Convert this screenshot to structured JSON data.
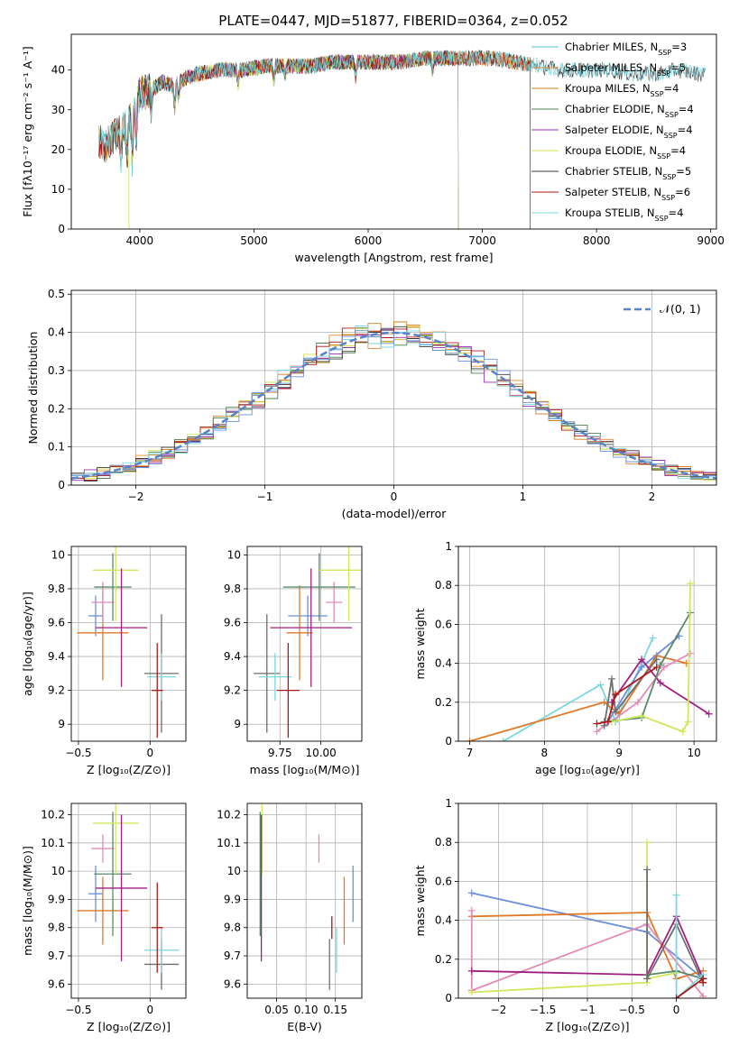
{
  "title": "PLATE=0447, MJD=51877, FIBERID=0364, z=0.052",
  "palette": [
    "#4ec0c8",
    "#e8853a",
    "#c8831a",
    "#4e7f55",
    "#9a2fb8",
    "#d4e04a",
    "#3a3a3a",
    "#b01818",
    "#7ad8e0",
    "#6b8fd8",
    "#e07a28",
    "#e48ab8",
    "#cfe85a",
    "#5a8a6a",
    "#6e6e6e",
    "#a02080"
  ],
  "chart_data": [
    {
      "type": "line",
      "id": "spectrum",
      "xlabel": "wavelength [Angstrom, rest frame]",
      "ylabel": "Flux [fλ10⁻¹⁷ erg cm⁻² s⁻¹ A⁻¹]",
      "xlim": [
        3400,
        9050
      ],
      "ylim": [
        0,
        49
      ],
      "xticks": [
        4000,
        5000,
        6000,
        7000,
        8000,
        9000
      ],
      "yticks": [
        0,
        10,
        20,
        30,
        40
      ],
      "grid": false,
      "legend_position": "upper-right",
      "continuum": {
        "x": [
          3640,
          3700,
          3800,
          3900,
          3960,
          4000,
          4100,
          4200,
          4300,
          4400,
          4500,
          4700,
          4900,
          5100,
          5300,
          5500,
          5700,
          5900,
          6100,
          6300,
          6500,
          6700,
          6900,
          7100,
          7300,
          7500,
          7700,
          7900,
          8100,
          8300,
          8500,
          8700,
          8900
        ],
        "y": [
          22,
          21,
          24,
          26,
          31,
          34,
          35,
          37,
          36,
          38,
          39,
          40,
          40,
          41,
          41,
          41,
          42,
          42,
          42,
          42,
          43,
          43,
          43,
          43,
          42,
          41,
          40,
          40,
          40,
          39,
          39,
          40,
          39
        ]
      },
      "series": [
        {
          "name": "Chabrier MILES, N_SSP=3",
          "legend_main": "Chabrier MILES, N",
          "legend_sub": "SSP",
          "legend_tail": "=3",
          "xmin": 3640,
          "xmax": 7420,
          "drop": 7420
        },
        {
          "name": "Salpeter MILES, N_SSP=5",
          "legend_main": "Salpeter MILES, N",
          "legend_sub": "SSP",
          "legend_tail": "=5",
          "xmin": 3640,
          "xmax": 7420,
          "drop": 7420
        },
        {
          "name": "Kroupa MILES, N_SSP=4",
          "legend_main": "Kroupa MILES, N",
          "legend_sub": "SSP",
          "legend_tail": "=4",
          "xmin": 3640,
          "xmax": 7420,
          "drop": 7420
        },
        {
          "name": "Chabrier ELODIE, N_SSP=4",
          "legend_main": "Chabrier ELODIE, N",
          "legend_sub": "SSP",
          "legend_tail": "=4",
          "xmin": 3900,
          "xmax": 6790,
          "drop": 6790
        },
        {
          "name": "Salpeter ELODIE, N_SSP=4",
          "legend_main": "Salpeter ELODIE, N",
          "legend_sub": "SSP",
          "legend_tail": "=4",
          "xmin": 3900,
          "xmax": 6790,
          "drop": 6790
        },
        {
          "name": "Kroupa ELODIE, N_SSP=4",
          "legend_main": "Kroupa ELODIE, N",
          "legend_sub": "SSP",
          "legend_tail": "=4",
          "xmin": 3900,
          "xmax": 6790,
          "drop": 6790
        },
        {
          "name": "Chabrier STELIB, N_SSP=5",
          "legend_main": "Chabrier STELIB, N",
          "legend_sub": "SSP",
          "legend_tail": "=5",
          "xmin": 3640,
          "xmax": 8950,
          "drop": null
        },
        {
          "name": "Salpeter STELIB, N_SSP=6",
          "legend_main": "Salpeter STELIB, N",
          "legend_sub": "SSP",
          "legend_tail": "=6",
          "xmin": 3640,
          "xmax": 7420,
          "drop": 7420
        },
        {
          "name": "Kroupa STELIB, N_SSP=4",
          "legend_main": "Kroupa STELIB, N",
          "legend_sub": "SSP",
          "legend_tail": "=4",
          "xmin": 3640,
          "xmax": 8950,
          "drop": null
        }
      ]
    },
    {
      "type": "histogram",
      "id": "residuals",
      "xlabel": "(data-model)/error",
      "ylabel": "Normed distribution",
      "xlim": [
        -2.5,
        2.5
      ],
      "ylim": [
        0,
        0.51
      ],
      "xticks": [
        -2,
        -1,
        0,
        1,
        2
      ],
      "yticks": [
        0.0,
        0.1,
        0.2,
        0.3,
        0.4,
        0.5
      ],
      "grid": true,
      "bin_width": 0.1,
      "n_histograms": 9,
      "reference_curve": {
        "label": "𝒩(0, 1)",
        "mean": 0,
        "sigma": 1,
        "style": "dashed"
      },
      "legend_position": "upper-right"
    },
    {
      "type": "errorbar",
      "id": "age-vs-Z",
      "xlabel": "Z [log₁₀(Z/Z⊙)]",
      "ylabel": "age  [log₁₀(age/yr)]",
      "xlim": [
        -0.55,
        0.25
      ],
      "ylim": [
        8.9,
        10.05
      ],
      "xticks": [
        -0.5,
        0.0
      ],
      "yticks": [
        9.0,
        9.2,
        9.4,
        9.6,
        9.8,
        10.0
      ],
      "grid": true,
      "points": [
        {
          "x": -0.38,
          "xerr": 0.05,
          "y": 9.64,
          "yerr": 0.12,
          "color": "#6b8fd8"
        },
        {
          "x": -0.33,
          "xerr": 0.18,
          "y": 9.54,
          "yerr": 0.28,
          "color": "#e07a28"
        },
        {
          "x": -0.33,
          "xerr": 0.08,
          "y": 9.72,
          "yerr": 0.12,
          "color": "#e48ab8"
        },
        {
          "x": -0.26,
          "xerr": 0.13,
          "y": 9.81,
          "yerr": 0.2,
          "color": "#5a8a6a"
        },
        {
          "x": -0.24,
          "xerr": 0.16,
          "y": 9.91,
          "yerr": 0.3,
          "color": "#cfe85a"
        },
        {
          "x": -0.2,
          "xerr": 0.18,
          "y": 9.57,
          "yerr": 0.35,
          "color": "#a02080"
        },
        {
          "x": 0.08,
          "xerr": 0.12,
          "y": 9.3,
          "yerr": 0.35,
          "color": "#6e6e6e"
        },
        {
          "x": 0.08,
          "xerr": 0.1,
          "y": 9.28,
          "yerr": 0.14,
          "color": "#7ad8e0"
        },
        {
          "x": 0.05,
          "xerr": 0.04,
          "y": 9.2,
          "yerr": 0.28,
          "color": "#b01818"
        }
      ]
    },
    {
      "type": "errorbar",
      "id": "age-vs-mass",
      "xlabel": "mass [log₁₀(M/M⊙)]",
      "ylabel": "",
      "xlim": [
        9.55,
        10.25
      ],
      "ylim": [
        8.9,
        10.05
      ],
      "xticks": [
        9.75,
        10.0
      ],
      "xtick_labels": [
        "9.75",
        "10.00"
      ],
      "yticks": [
        9.0,
        9.2,
        9.4,
        9.6,
        9.8,
        10.0
      ],
      "grid": true,
      "points": [
        {
          "x": 9.92,
          "xerr": 0.12,
          "y": 9.64,
          "yerr": 0.12,
          "color": "#6b8fd8"
        },
        {
          "x": 9.87,
          "xerr": 0.08,
          "y": 9.54,
          "yerr": 0.28,
          "color": "#e07a28"
        },
        {
          "x": 10.08,
          "xerr": 0.05,
          "y": 9.72,
          "yerr": 0.12,
          "color": "#e48ab8"
        },
        {
          "x": 9.99,
          "xerr": 0.22,
          "y": 9.81,
          "yerr": 0.2,
          "color": "#5a8a6a"
        },
        {
          "x": 10.17,
          "xerr": 0.18,
          "y": 9.91,
          "yerr": 0.3,
          "color": "#cfe85a"
        },
        {
          "x": 9.94,
          "xerr": 0.25,
          "y": 9.57,
          "yerr": 0.35,
          "color": "#a02080"
        },
        {
          "x": 9.67,
          "xerr": 0.08,
          "y": 9.3,
          "yerr": 0.35,
          "color": "#6e6e6e"
        },
        {
          "x": 9.72,
          "xerr": 0.1,
          "y": 9.28,
          "yerr": 0.14,
          "color": "#7ad8e0"
        },
        {
          "x": 9.8,
          "xerr": 0.07,
          "y": 9.2,
          "yerr": 0.28,
          "color": "#b01818"
        }
      ]
    },
    {
      "type": "line",
      "id": "mass-weight-vs-age",
      "xlabel": "age  [log₁₀(age/yr)]",
      "ylabel": "mass weight",
      "xlim": [
        6.85,
        10.3
      ],
      "ylim": [
        0,
        1.0
      ],
      "xticks": [
        7,
        8,
        9,
        10
      ],
      "yticks": [
        0.0,
        0.2,
        0.4,
        0.6,
        0.8,
        1.0
      ],
      "grid": true,
      "series": [
        {
          "color": "#7ad8e0",
          "x": [
            7.45,
            8.75,
            8.95,
            9.45
          ],
          "y": [
            0.0,
            0.29,
            0.1,
            0.53
          ]
        },
        {
          "color": "#e07a28",
          "x": [
            7.0,
            8.8,
            9.0,
            9.5,
            9.9
          ],
          "y": [
            0.0,
            0.2,
            0.14,
            0.44,
            0.4
          ]
        },
        {
          "color": "#e48ab8",
          "x": [
            8.7,
            9.25,
            9.6,
            9.95
          ],
          "y": [
            0.05,
            0.2,
            0.38,
            0.45
          ]
        },
        {
          "color": "#6b8fd8",
          "x": [
            8.85,
            9.3,
            9.8
          ],
          "y": [
            0.1,
            0.38,
            0.54
          ]
        },
        {
          "color": "#a02080",
          "x": [
            8.9,
            9.3,
            9.55,
            10.2
          ],
          "y": [
            0.2,
            0.42,
            0.3,
            0.14
          ]
        },
        {
          "color": "#5a8a6a",
          "x": [
            8.8,
            9.3,
            9.55,
            9.95
          ],
          "y": [
            0.1,
            0.12,
            0.39,
            0.66
          ]
        },
        {
          "color": "#cfe85a",
          "x": [
            8.9,
            9.3,
            9.85,
            9.92,
            9.95
          ],
          "y": [
            0.1,
            0.13,
            0.05,
            0.1,
            0.81
          ]
        },
        {
          "color": "#6e6e6e",
          "x": [
            8.8,
            8.9,
            8.95,
            9.5
          ],
          "y": [
            0.08,
            0.32,
            0.15,
            0.42
          ]
        },
        {
          "color": "#b01818",
          "x": [
            8.7,
            8.85,
            8.95,
            9.5
          ],
          "y": [
            0.09,
            0.1,
            0.24,
            0.38
          ]
        }
      ]
    },
    {
      "type": "errorbar",
      "id": "mass-vs-Z",
      "xlabel": "Z [log₁₀(Z/Z⊙)]",
      "ylabel": "mass [log₁₀(M/M⊙)]",
      "xlim": [
        -0.55,
        0.25
      ],
      "ylim": [
        9.55,
        10.24
      ],
      "xticks": [
        -0.5,
        0.0
      ],
      "yticks": [
        9.6,
        9.7,
        9.8,
        9.9,
        10.0,
        10.1,
        10.2
      ],
      "grid": true,
      "points": [
        {
          "x": -0.38,
          "xerr": 0.05,
          "y": 9.92,
          "yerr": 0.1,
          "color": "#6b8fd8"
        },
        {
          "x": -0.33,
          "xerr": 0.18,
          "y": 9.86,
          "yerr": 0.12,
          "color": "#e07a28"
        },
        {
          "x": -0.33,
          "xerr": 0.08,
          "y": 10.08,
          "yerr": 0.05,
          "color": "#e48ab8"
        },
        {
          "x": -0.26,
          "xerr": 0.13,
          "y": 9.99,
          "yerr": 0.22,
          "color": "#5a8a6a"
        },
        {
          "x": -0.24,
          "xerr": 0.16,
          "y": 10.17,
          "yerr": 0.18,
          "color": "#cfe85a"
        },
        {
          "x": -0.2,
          "xerr": 0.18,
          "y": 9.94,
          "yerr": 0.26,
          "color": "#a02080"
        },
        {
          "x": 0.08,
          "xerr": 0.12,
          "y": 9.67,
          "yerr": 0.09,
          "color": "#6e6e6e"
        },
        {
          "x": 0.08,
          "xerr": 0.12,
          "y": 9.72,
          "yerr": 0.08,
          "color": "#7ad8e0"
        },
        {
          "x": 0.05,
          "xerr": 0.04,
          "y": 9.8,
          "yerr": 0.16,
          "color": "#b01818"
        }
      ]
    },
    {
      "type": "errorbar",
      "id": "mass-vs-EBV",
      "xlabel": "E(B-V)",
      "ylabel": "",
      "xlim": [
        0.0,
        0.195
      ],
      "ylim": [
        9.55,
        10.24
      ],
      "xticks": [
        0.05,
        0.1,
        0.15
      ],
      "xtick_labels": [
        "0.05",
        "0.10",
        "0.15"
      ],
      "yticks": [
        9.6,
        9.7,
        9.8,
        9.9,
        10.0,
        10.1,
        10.2
      ],
      "grid": true,
      "points": [
        {
          "x": 0.18,
          "xerr": 0,
          "y": 9.92,
          "yerr": 0.1,
          "color": "#6b8fd8"
        },
        {
          "x": 0.165,
          "xerr": 0,
          "y": 9.86,
          "yerr": 0.12,
          "color": "#e07a28"
        },
        {
          "x": 0.122,
          "xerr": 0,
          "y": 10.08,
          "yerr": 0.05,
          "color": "#e48ab8"
        },
        {
          "x": 0.022,
          "xerr": 0,
          "y": 9.99,
          "yerr": 0.22,
          "color": "#5a8a6a"
        },
        {
          "x": 0.025,
          "xerr": 0,
          "y": 10.17,
          "yerr": 0.18,
          "color": "#cfe85a"
        },
        {
          "x": 0.024,
          "xerr": 0,
          "y": 9.94,
          "yerr": 0.26,
          "color": "#a02080"
        },
        {
          "x": 0.14,
          "xerr": 0,
          "y": 9.67,
          "yerr": 0.09,
          "color": "#6e6e6e"
        },
        {
          "x": 0.152,
          "xerr": 0,
          "y": 9.72,
          "yerr": 0.08,
          "color": "#7ad8e0"
        },
        {
          "x": 0.144,
          "xerr": 0,
          "y": 9.8,
          "yerr": 0.04,
          "color": "#b01818"
        }
      ]
    },
    {
      "type": "line",
      "id": "mass-weight-vs-Z",
      "xlabel": "Z [log₁₀(Z/Z⊙)]",
      "ylabel": "mass weight",
      "xlim": [
        -2.45,
        0.45
      ],
      "ylim": [
        0,
        1.0
      ],
      "xticks": [
        -2.0,
        -1.5,
        -1.0,
        -0.5,
        0.0
      ],
      "yticks": [
        0.0,
        0.2,
        0.4,
        0.6,
        0.8,
        1.0
      ],
      "grid": true,
      "series": [
        {
          "color": "#6b8fd8",
          "x": [
            -2.3,
            -0.33,
            0.3
          ],
          "y": [
            0.54,
            0.34,
            0.1
          ]
        },
        {
          "color": "#e07a28",
          "x": [
            -2.3,
            -0.33,
            0.0,
            0.3
          ],
          "y": [
            0.42,
            0.44,
            0.1,
            0.14
          ]
        },
        {
          "color": "#e48ab8",
          "x": [
            -2.3,
            -2.3,
            -0.33,
            0.3
          ],
          "y": [
            0.45,
            0.04,
            0.38,
            0.01
          ]
        },
        {
          "color": "#a02080",
          "x": [
            -2.3,
            -0.33,
            0.0,
            0.3
          ],
          "y": [
            0.14,
            0.12,
            0.42,
            0.1
          ]
        },
        {
          "color": "#cfe85a",
          "x": [
            -2.3,
            -0.33,
            -0.33,
            -0.33,
            0.0
          ],
          "y": [
            0.03,
            0.08,
            0.8,
            0.1,
            0.13
          ]
        },
        {
          "color": "#5a8a6a",
          "x": [
            -0.33,
            0.0,
            0.3
          ],
          "y": [
            0.12,
            0.14,
            0.1
          ]
        },
        {
          "color": "#6e6e6e",
          "x": [
            -0.33,
            -0.33,
            0.0,
            0.3
          ],
          "y": [
            0.66,
            0.1,
            0.38,
            0.08
          ]
        },
        {
          "color": "#7ad8e0",
          "x": [
            0.0,
            0.0,
            0.3
          ],
          "y": [
            0.53,
            0.0,
            0.12
          ]
        },
        {
          "color": "#b01818",
          "x": [
            0.0,
            0.3,
            0.3
          ],
          "y": [
            0.0,
            0.1,
            0.08
          ]
        }
      ]
    }
  ]
}
